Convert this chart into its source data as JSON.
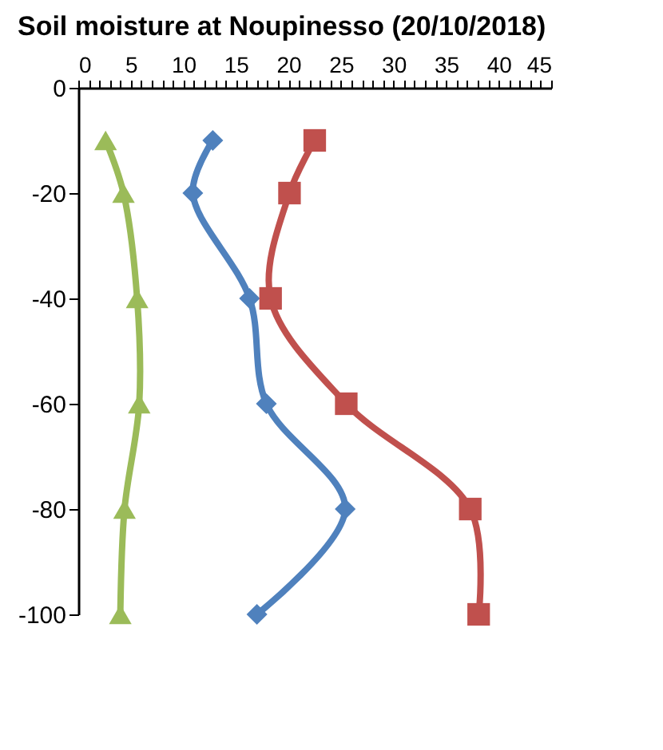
{
  "chart_data": {
    "type": "line",
    "title": "Soil moisture at Noupinesso (20/10/2018)",
    "xlim": [
      0,
      45
    ],
    "xticks": [
      0,
      {
        "value": 1,
        "label": null
      },
      {
        "value": 2,
        "label": null
      },
      {
        "value": 3,
        "label": null
      },
      {
        "value": 4,
        "label": null
      },
      5,
      {
        "value": 6,
        "label": null
      },
      {
        "value": 7,
        "label": null
      },
      {
        "value": 8,
        "label": null
      },
      {
        "value": 9,
        "label": null
      },
      10,
      {
        "value": 11,
        "label": null
      },
      {
        "value": 12,
        "label": null
      },
      {
        "value": 13,
        "label": null
      },
      {
        "value": 14,
        "label": null
      },
      15,
      {
        "value": 16,
        "label": null
      },
      {
        "value": 17,
        "label": null
      },
      {
        "value": 18,
        "label": null
      },
      {
        "value": 19,
        "label": null
      },
      20,
      {
        "value": 21,
        "label": null
      },
      {
        "value": 22,
        "label": null
      },
      {
        "value": 23,
        "label": null
      },
      {
        "value": 24,
        "label": null
      },
      25,
      {
        "value": 26,
        "label": null
      },
      {
        "value": 27,
        "label": null
      },
      {
        "value": 28,
        "label": null
      },
      {
        "value": 29,
        "label": null
      },
      30,
      {
        "value": 31,
        "label": null
      },
      {
        "value": 32,
        "label": null
      },
      {
        "value": 33,
        "label": null
      },
      {
        "value": 34,
        "label": null
      },
      35,
      {
        "value": 36,
        "label": null
      },
      {
        "value": 37,
        "label": null
      },
      {
        "value": 38,
        "label": null
      },
      {
        "value": 39,
        "label": null
      },
      40,
      {
        "value": 41,
        "label": null
      },
      {
        "value": 42,
        "label": null
      },
      {
        "value": 43,
        "label": null
      },
      {
        "value": 44,
        "label": null
      },
      45
    ],
    "ylim": [
      -100,
      0
    ],
    "yticks": [
      0,
      -20,
      -40,
      -60,
      -80,
      -100
    ],
    "grid": false,
    "series": [
      {
        "color": "#4f81bd",
        "marker": "diamond",
        "x": [
          12.8,
          10.9,
          16.3,
          17.9,
          25.4,
          17.0
        ],
        "values": [
          -10,
          -20,
          -40,
          -60,
          -80,
          -100
        ]
      },
      {
        "color": "#c0504d",
        "marker": "square",
        "x": [
          22.5,
          20.1,
          18.3,
          25.5,
          37.3,
          38.1
        ],
        "values": [
          -10,
          -20,
          -40,
          -60,
          -80,
          -100
        ]
      },
      {
        "color": "#9bbb59",
        "marker": "triangle",
        "x": [
          2.6,
          4.3,
          5.6,
          5.8,
          4.4,
          4.0
        ],
        "values": [
          -10,
          -20,
          -40,
          -60,
          -80,
          -100
        ]
      }
    ]
  }
}
